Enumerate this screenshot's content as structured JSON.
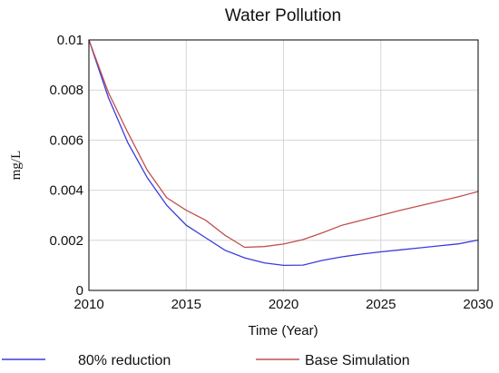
{
  "chart_data": {
    "type": "line",
    "title": "Water Pollution",
    "xlabel": "Time (Year)",
    "ylabel": "mg/L",
    "xlim": [
      2010,
      2030
    ],
    "ylim": [
      0,
      0.01
    ],
    "x_ticks": [
      "2010",
      "2015",
      "2020",
      "2025",
      "2030"
    ],
    "y_ticks": [
      "0",
      "0.002",
      "0.004",
      "0.006",
      "0.008",
      "0.01"
    ],
    "grid": true,
    "legend_position": "bottom",
    "x": [
      2010,
      2011,
      2012,
      2013,
      2014,
      2015,
      2016,
      2017,
      2018,
      2019,
      2020,
      2021,
      2022,
      2023,
      2024,
      2025,
      2026,
      2027,
      2028,
      2029,
      2030
    ],
    "series": [
      {
        "name": "80% reduction",
        "color": "#3b3bdb",
        "values": [
          0.01,
          0.0077,
          0.0059,
          0.0045,
          0.0034,
          0.0026,
          0.0021,
          0.0016,
          0.0013,
          0.0011,
          0.001,
          0.00101,
          0.0012,
          0.00134,
          0.00145,
          0.00154,
          0.00162,
          0.0017,
          0.00178,
          0.00186,
          0.00201
        ]
      },
      {
        "name": "Base Simulation",
        "color": "#c0504d",
        "values": [
          0.01,
          0.0079,
          0.0063,
          0.0048,
          0.0037,
          0.0032,
          0.0028,
          0.0022,
          0.00172,
          0.00175,
          0.00185,
          0.00203,
          0.0023,
          0.0026,
          0.0028,
          0.003,
          0.0032,
          0.00338,
          0.00356,
          0.00374,
          0.00395
        ]
      }
    ]
  }
}
